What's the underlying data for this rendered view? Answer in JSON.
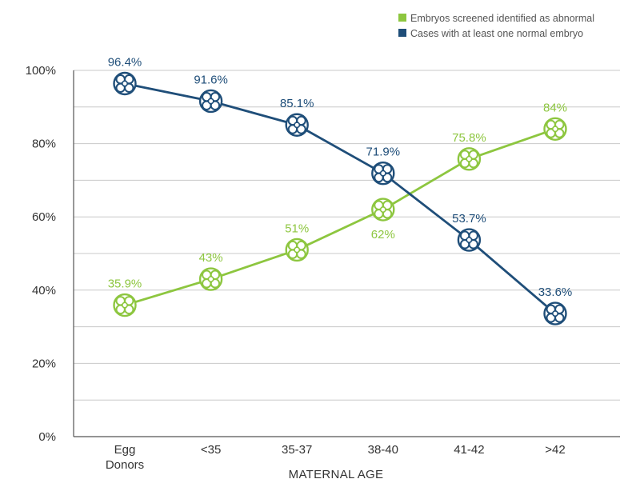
{
  "chart_data": {
    "type": "line",
    "categories": [
      "Egg Donors",
      "<35",
      "35-37",
      "38-40",
      "41-42",
      ">42"
    ],
    "category_lines": [
      [
        "Egg",
        "Donors"
      ],
      [
        "<35"
      ],
      [
        "35-37"
      ],
      [
        "38-40"
      ],
      [
        "41-42"
      ],
      [
        ">42"
      ]
    ],
    "xlabel": "MATERNAL AGE",
    "ylabel": "",
    "ylim": [
      0,
      100
    ],
    "yticks": [
      0,
      20,
      40,
      60,
      80,
      100
    ],
    "ytick_labels": [
      "0%",
      "20%",
      "40%",
      "60%",
      "80%",
      "100%"
    ],
    "grid": true,
    "legend_position": "top-right",
    "series": [
      {
        "name": "Embryos screened identified as abnormal",
        "color": "#8dc63f",
        "values": [
          35.9,
          43,
          51,
          62,
          75.8,
          84
        ],
        "labels": [
          "35.9%",
          "43%",
          "51%",
          "62%",
          "75.8%",
          "84%"
        ],
        "label_positions": [
          "above",
          "above",
          "above",
          "below",
          "above",
          "above"
        ]
      },
      {
        "name": "Cases with at least one normal embryo",
        "color": "#1f4e79",
        "values": [
          96.4,
          91.6,
          85.1,
          71.9,
          53.7,
          33.6
        ],
        "labels": [
          "96.4%",
          "91.6%",
          "85.1%",
          "71.9%",
          "53.7%",
          "33.6%"
        ],
        "label_positions": [
          "above",
          "above",
          "above",
          "above",
          "above",
          "above"
        ]
      }
    ]
  }
}
